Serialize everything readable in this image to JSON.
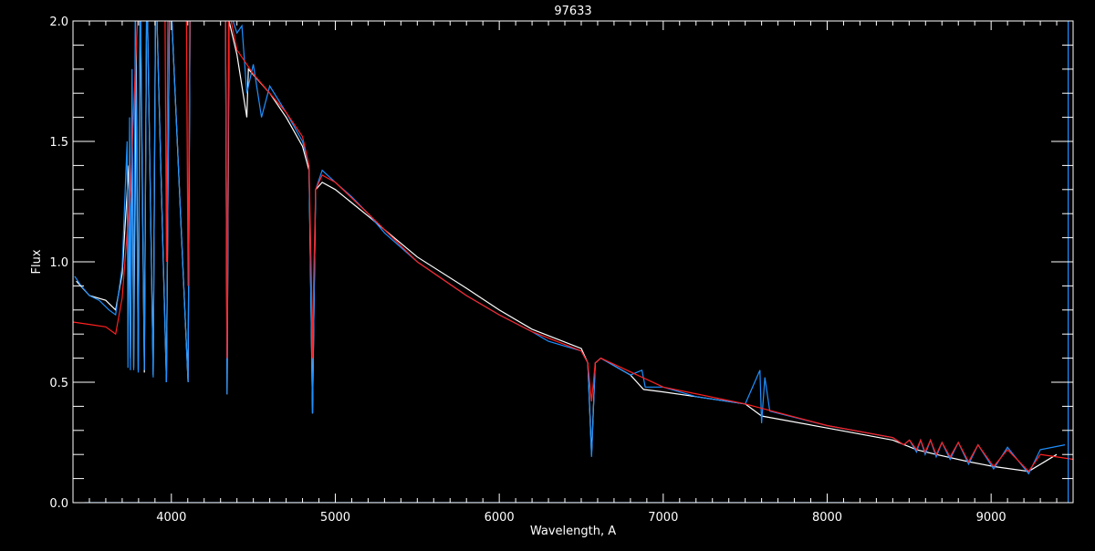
{
  "chart_data": {
    "type": "line",
    "title": "97633",
    "xlabel": "Wavelength, A",
    "ylabel": "Flux",
    "xlim": [
      3400,
      9500
    ],
    "ylim": [
      0.0,
      2.0
    ],
    "xticks": [
      4000,
      5000,
      6000,
      7000,
      8000,
      9000
    ],
    "xtick_labels": [
      "4000",
      "5000",
      "6000",
      "7000",
      "8000",
      "9000"
    ],
    "yticks": [
      0.0,
      0.5,
      1.0,
      1.5,
      2.0
    ],
    "ytick_labels": [
      "0.0",
      "0.5",
      "1.0",
      "1.5",
      "2.0"
    ],
    "grid": false,
    "background": "#000000",
    "axis_color": "#ffffff",
    "series": [
      {
        "color": "#ffffff",
        "points": [
          [
            3420,
            0.92
          ],
          [
            3500,
            0.86
          ],
          [
            3600,
            0.84
          ],
          [
            3660,
            0.8
          ],
          [
            3700,
            0.95
          ],
          [
            3740,
            1.4
          ],
          [
            3750,
            0.6
          ],
          [
            3760,
            1.6
          ],
          [
            3770,
            0.56
          ],
          [
            3785,
            1.9
          ],
          [
            3798,
            0.55
          ],
          [
            3810,
            2.1
          ],
          [
            3835,
            0.54
          ],
          [
            3850,
            2.2
          ],
          [
            3889,
            0.53
          ],
          [
            3905,
            2.2
          ],
          [
            3970,
            0.5
          ],
          [
            3990,
            2.2
          ],
          [
            4102,
            0.5
          ],
          [
            4115,
            2.2
          ],
          [
            4330,
            2.1
          ],
          [
            4340,
            0.45
          ],
          [
            4352,
            2.0
          ],
          [
            4400,
            1.86
          ],
          [
            4460,
            1.6
          ],
          [
            4470,
            1.8
          ],
          [
            4600,
            1.7
          ],
          [
            4700,
            1.6
          ],
          [
            4800,
            1.48
          ],
          [
            4840,
            1.38
          ],
          [
            4861,
            0.37
          ],
          [
            4880,
            1.3
          ],
          [
            4920,
            1.33
          ],
          [
            5000,
            1.3
          ],
          [
            5200,
            1.19
          ],
          [
            5500,
            1.02
          ],
          [
            5800,
            0.89
          ],
          [
            6000,
            0.8
          ],
          [
            6200,
            0.72
          ],
          [
            6500,
            0.64
          ],
          [
            6540,
            0.58
          ],
          [
            6563,
            0.2
          ],
          [
            6585,
            0.58
          ],
          [
            6620,
            0.6
          ],
          [
            6800,
            0.53
          ],
          [
            6880,
            0.47
          ],
          [
            7000,
            0.46
          ],
          [
            7200,
            0.44
          ],
          [
            7500,
            0.41
          ],
          [
            7600,
            0.36
          ],
          [
            8000,
            0.31
          ],
          [
            8400,
            0.26
          ],
          [
            8545,
            0.22
          ],
          [
            8665,
            0.2
          ],
          [
            8863,
            0.17
          ],
          [
            9015,
            0.15
          ],
          [
            9229,
            0.13
          ],
          [
            9400,
            0.2
          ]
        ]
      },
      {
        "color": "#1e90ff",
        "points": [
          [
            3410,
            0.94
          ],
          [
            3450,
            0.9
          ],
          [
            3500,
            0.86
          ],
          [
            3560,
            0.84
          ],
          [
            3620,
            0.8
          ],
          [
            3660,
            0.78
          ],
          [
            3700,
            0.98
          ],
          [
            3730,
            1.5
          ],
          [
            3735,
            0.56
          ],
          [
            3745,
            1.6
          ],
          [
            3750,
            0.55
          ],
          [
            3760,
            1.8
          ],
          [
            3770,
            0.55
          ],
          [
            3780,
            2.1
          ],
          [
            3798,
            0.54
          ],
          [
            3810,
            2.2
          ],
          [
            3835,
            0.55
          ],
          [
            3850,
            2.2
          ],
          [
            3889,
            0.52
          ],
          [
            3905,
            2.2
          ],
          [
            3970,
            0.5
          ],
          [
            3990,
            2.2
          ],
          [
            4102,
            0.5
          ],
          [
            4115,
            2.2
          ],
          [
            4330,
            2.1
          ],
          [
            4340,
            0.45
          ],
          [
            4352,
            2.05
          ],
          [
            4400,
            1.95
          ],
          [
            4430,
            1.98
          ],
          [
            4460,
            1.7
          ],
          [
            4500,
            1.82
          ],
          [
            4550,
            1.6
          ],
          [
            4600,
            1.73
          ],
          [
            4700,
            1.62
          ],
          [
            4800,
            1.5
          ],
          [
            4840,
            1.4
          ],
          [
            4861,
            0.37
          ],
          [
            4880,
            1.3
          ],
          [
            4920,
            1.38
          ],
          [
            5000,
            1.33
          ],
          [
            5100,
            1.27
          ],
          [
            5200,
            1.2
          ],
          [
            5300,
            1.12
          ],
          [
            5500,
            1.0
          ],
          [
            5800,
            0.86
          ],
          [
            6000,
            0.78
          ],
          [
            6200,
            0.71
          ],
          [
            6300,
            0.67
          ],
          [
            6400,
            0.65
          ],
          [
            6500,
            0.63
          ],
          [
            6540,
            0.58
          ],
          [
            6563,
            0.19
          ],
          [
            6585,
            0.58
          ],
          [
            6620,
            0.6
          ],
          [
            6800,
            0.53
          ],
          [
            6870,
            0.55
          ],
          [
            6890,
            0.48
          ],
          [
            7000,
            0.48
          ],
          [
            7200,
            0.44
          ],
          [
            7500,
            0.41
          ],
          [
            7590,
            0.55
          ],
          [
            7600,
            0.33
          ],
          [
            7620,
            0.52
          ],
          [
            7650,
            0.38
          ],
          [
            8000,
            0.32
          ],
          [
            8400,
            0.27
          ],
          [
            8467,
            0.24
          ],
          [
            8502,
            0.26
          ],
          [
            8545,
            0.21
          ],
          [
            8570,
            0.26
          ],
          [
            8598,
            0.2
          ],
          [
            8630,
            0.26
          ],
          [
            8665,
            0.19
          ],
          [
            8700,
            0.25
          ],
          [
            8750,
            0.18
          ],
          [
            8800,
            0.25
          ],
          [
            8863,
            0.16
          ],
          [
            8920,
            0.24
          ],
          [
            9015,
            0.14
          ],
          [
            9100,
            0.23
          ],
          [
            9229,
            0.12
          ],
          [
            9300,
            0.22
          ],
          [
            9450,
            0.24
          ]
        ]
      },
      {
        "color": "#ff2020",
        "points": [
          [
            3400,
            0.75
          ],
          [
            3500,
            0.74
          ],
          [
            3600,
            0.73
          ],
          [
            3660,
            0.7
          ],
          [
            3700,
            0.85
          ],
          [
            3750,
            1.3
          ],
          [
            3780,
            1.8
          ],
          [
            3800,
            2.1
          ],
          [
            3960,
            2.2
          ],
          [
            3970,
            1.0
          ],
          [
            3980,
            2.2
          ],
          [
            4090,
            2.2
          ],
          [
            4102,
            0.9
          ],
          [
            4114,
            2.2
          ],
          [
            4330,
            2.1
          ],
          [
            4340,
            0.6
          ],
          [
            4350,
            2.05
          ],
          [
            4400,
            1.88
          ],
          [
            4500,
            1.78
          ],
          [
            4600,
            1.7
          ],
          [
            4700,
            1.62
          ],
          [
            4800,
            1.52
          ],
          [
            4840,
            1.4
          ],
          [
            4855,
            0.9
          ],
          [
            4861,
            0.6
          ],
          [
            4867,
            0.9
          ],
          [
            4880,
            1.3
          ],
          [
            4920,
            1.36
          ],
          [
            5000,
            1.33
          ],
          [
            5200,
            1.2
          ],
          [
            5500,
            1.0
          ],
          [
            5800,
            0.86
          ],
          [
            6000,
            0.78
          ],
          [
            6200,
            0.71
          ],
          [
            6500,
            0.63
          ],
          [
            6540,
            0.58
          ],
          [
            6563,
            0.42
          ],
          [
            6585,
            0.58
          ],
          [
            6620,
            0.6
          ],
          [
            7000,
            0.48
          ],
          [
            7500,
            0.41
          ],
          [
            8000,
            0.32
          ],
          [
            8400,
            0.27
          ],
          [
            8467,
            0.24
          ],
          [
            8502,
            0.26
          ],
          [
            8545,
            0.22
          ],
          [
            8570,
            0.26
          ],
          [
            8598,
            0.21
          ],
          [
            8630,
            0.26
          ],
          [
            8665,
            0.2
          ],
          [
            8700,
            0.25
          ],
          [
            8750,
            0.19
          ],
          [
            8800,
            0.25
          ],
          [
            8863,
            0.17
          ],
          [
            8920,
            0.24
          ],
          [
            9015,
            0.15
          ],
          [
            9100,
            0.22
          ],
          [
            9229,
            0.13
          ],
          [
            9300,
            0.2
          ],
          [
            9500,
            0.18
          ]
        ]
      },
      {
        "color": "#1e90ff",
        "points": [
          [
            3470,
            0.0
          ],
          [
            8140,
            0.0
          ]
        ]
      },
      {
        "color": "#1e90ff",
        "points": [
          [
            9470,
            0.0
          ],
          [
            9470,
            2.0
          ]
        ]
      }
    ]
  }
}
